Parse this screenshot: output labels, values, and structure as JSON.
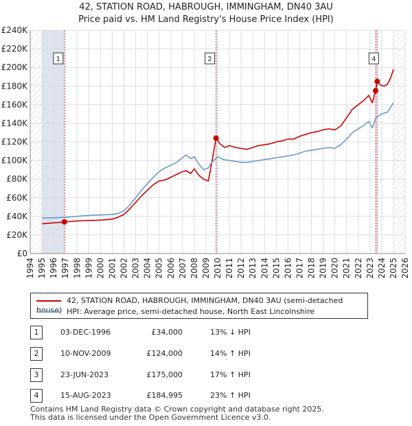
{
  "title_line1": "42, STATION ROAD, HABROUGH, IMMINGHAM, DN40 3AU",
  "title_line2": "Price paid vs. HM Land Registry's House Price Index (HPI)",
  "legend": {
    "red_label": "42, STATION ROAD, HABROUGH, IMMINGHAM, DN40 3AU (semi-detached house)",
    "blue_label": "HPI: Average price, semi-detached house, North East Lincolnshire"
  },
  "transactions": [
    {
      "num": "1",
      "date": "03-DEC-1996",
      "price": "£34,000",
      "hpi": "13% ↓ HPI"
    },
    {
      "num": "2",
      "date": "10-NOV-2009",
      "price": "£124,000",
      "hpi": "14% ↑ HPI"
    },
    {
      "num": "3",
      "date": "23-JUN-2023",
      "price": "£175,000",
      "hpi": "17% ↑ HPI"
    },
    {
      "num": "4",
      "date": "15-AUG-2023",
      "price": "£184,995",
      "hpi": "23% ↑ HPI"
    }
  ],
  "footer_line1": "Contains HM Land Registry data © Crown copyright and database right 2025.",
  "footer_line2": "This data is licensed under the Open Government Licence v3.0.",
  "colors": {
    "red": "#cc0000",
    "blue": "#6699cc",
    "grid": "#dddddd",
    "shade": "#dde4f0",
    "hatch": "#cccccc"
  },
  "chart_data": {
    "type": "line",
    "title": "Price paid vs. HM Land Registry's House Price Index (HPI)",
    "xlabel": "",
    "ylabel": "",
    "xlim": [
      1994,
      2026
    ],
    "ylim": [
      0,
      240000
    ],
    "x_ticks": [
      1994,
      1995,
      1996,
      1997,
      1998,
      1999,
      2000,
      2001,
      2002,
      2003,
      2004,
      2005,
      2006,
      2007,
      2008,
      2009,
      2010,
      2011,
      2012,
      2013,
      2014,
      2015,
      2016,
      2017,
      2018,
      2019,
      2020,
      2021,
      2022,
      2023,
      2024,
      2025,
      2026
    ],
    "y_ticks": [
      0,
      20000,
      40000,
      60000,
      80000,
      100000,
      120000,
      140000,
      160000,
      180000,
      200000,
      220000,
      240000
    ],
    "y_tick_labels": [
      "£0",
      "£20K",
      "£40K",
      "£60K",
      "£80K",
      "£100K",
      "£120K",
      "£140K",
      "£160K",
      "£180K",
      "£200K",
      "£220K",
      "£240K"
    ],
    "shaded_ranges": [
      [
        1995.0,
        1996.92
      ],
      [
        2009.86,
        2010.0
      ],
      [
        2023.48,
        2023.62
      ]
    ],
    "hatched_ranges": [
      [
        1994.0,
        1995.0
      ],
      [
        2025.0,
        2026.0
      ]
    ],
    "markers": [
      {
        "label": "1",
        "x": 1996.92,
        "y": 34000
      },
      {
        "label": "2",
        "x": 2009.86,
        "y": 124000
      },
      {
        "label": "3",
        "x": 2023.48,
        "y": 175000
      },
      {
        "label": "4",
        "x": 2023.62,
        "y": 184995
      }
    ],
    "series": [
      {
        "name": "42, STATION ROAD, HABROUGH, IMMINGHAM, DN40 3AU (semi-detached house)",
        "color": "#cc0000",
        "x": [
          1995.0,
          1996.0,
          1996.92,
          1998.0,
          1999.0,
          2000.0,
          2001.0,
          2001.5,
          2002.0,
          2002.5,
          2003.0,
          2003.5,
          2004.0,
          2004.5,
          2005.0,
          2005.5,
          2006.0,
          2006.5,
          2007.0,
          2007.3,
          2007.7,
          2008.0,
          2008.4,
          2008.8,
          2009.2,
          2009.5,
          2009.86,
          2010.2,
          2010.6,
          2011.0,
          2011.5,
          2012.0,
          2012.5,
          2013.0,
          2013.5,
          2014.0,
          2014.5,
          2015.0,
          2015.5,
          2016.0,
          2016.5,
          2017.0,
          2017.5,
          2018.0,
          2018.5,
          2019.0,
          2019.5,
          2020.0,
          2020.5,
          2021.0,
          2021.5,
          2022.0,
          2022.5,
          2022.9,
          2023.2,
          2023.48,
          2023.62,
          2023.9,
          2024.2,
          2024.5,
          2024.8,
          2025.0
        ],
        "y": [
          32000,
          33000,
          34000,
          35000,
          35500,
          36000,
          37000,
          39000,
          42000,
          48000,
          55000,
          62000,
          68000,
          74000,
          78000,
          79000,
          82000,
          85000,
          88000,
          89000,
          86000,
          91000,
          84000,
          80000,
          78000,
          98000,
          124000,
          118000,
          114000,
          116000,
          114000,
          113000,
          112000,
          114000,
          116000,
          117000,
          118000,
          120000,
          121000,
          123000,
          123000,
          126000,
          128000,
          130000,
          131000,
          133000,
          134000,
          133000,
          137000,
          146000,
          155000,
          160000,
          165000,
          170000,
          162000,
          175000,
          184995,
          181000,
          180000,
          182000,
          190000,
          198000
        ]
      },
      {
        "name": "HPI: Average price, semi-detached house, North East Lincolnshire",
        "color": "#6699cc",
        "x": [
          1995.0,
          1996.0,
          1997.0,
          1998.0,
          1999.0,
          2000.0,
          2001.0,
          2001.5,
          2002.0,
          2002.5,
          2003.0,
          2003.5,
          2004.0,
          2004.5,
          2005.0,
          2005.5,
          2006.0,
          2006.5,
          2007.0,
          2007.3,
          2007.7,
          2008.0,
          2008.4,
          2008.8,
          2009.2,
          2009.5,
          2010.0,
          2010.5,
          2011.0,
          2011.5,
          2012.0,
          2012.5,
          2013.0,
          2013.5,
          2014.0,
          2014.5,
          2015.0,
          2015.5,
          2016.0,
          2016.5,
          2017.0,
          2017.5,
          2018.0,
          2018.5,
          2019.0,
          2019.5,
          2020.0,
          2020.5,
          2021.0,
          2021.5,
          2022.0,
          2022.5,
          2022.9,
          2023.2,
          2023.5,
          2024.0,
          2024.5,
          2025.0
        ],
        "y": [
          38000,
          38500,
          39000,
          40000,
          41000,
          41500,
          42000,
          43000,
          46000,
          52000,
          60000,
          68000,
          75000,
          82000,
          88000,
          92000,
          95000,
          98000,
          103000,
          106000,
          102000,
          104000,
          96000,
          90000,
          92000,
          98000,
          104000,
          101000,
          100000,
          99000,
          98000,
          98000,
          99000,
          100000,
          101000,
          102000,
          103000,
          104000,
          105000,
          106000,
          108000,
          110000,
          111000,
          112000,
          113000,
          114000,
          113000,
          117000,
          123000,
          130000,
          134000,
          138000,
          142000,
          135000,
          146000,
          150000,
          152000,
          162000
        ]
      }
    ]
  }
}
